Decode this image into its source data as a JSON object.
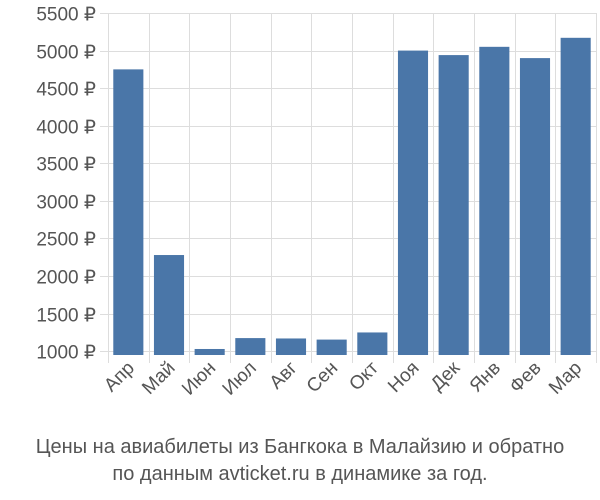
{
  "chart_data": {
    "type": "bar",
    "title": "",
    "xlabel": "",
    "ylabel": "",
    "currency": "₽",
    "categories": [
      "Апр",
      "Май",
      "Июн",
      "Июл",
      "Авг",
      "Сен",
      "Окт",
      "Ноя",
      "Дек",
      "Янв",
      "Фев",
      "Мар"
    ],
    "values": [
      4750,
      2280,
      1030,
      1175,
      1170,
      1155,
      1250,
      5000,
      4940,
      5050,
      4900,
      5170
    ],
    "yticks": [
      1000,
      1500,
      2000,
      2500,
      3000,
      3500,
      4000,
      4500,
      5000,
      5500
    ],
    "ylim": [
      950,
      5500
    ],
    "grid": true,
    "bar_color": "#4a76a8",
    "grid_color": "#dddddd"
  },
  "caption": {
    "line1": "Цены на авиабилеты из Бангкока в Малайзию и обратно",
    "line2": "по данным avticket.ru в динамике за год."
  }
}
